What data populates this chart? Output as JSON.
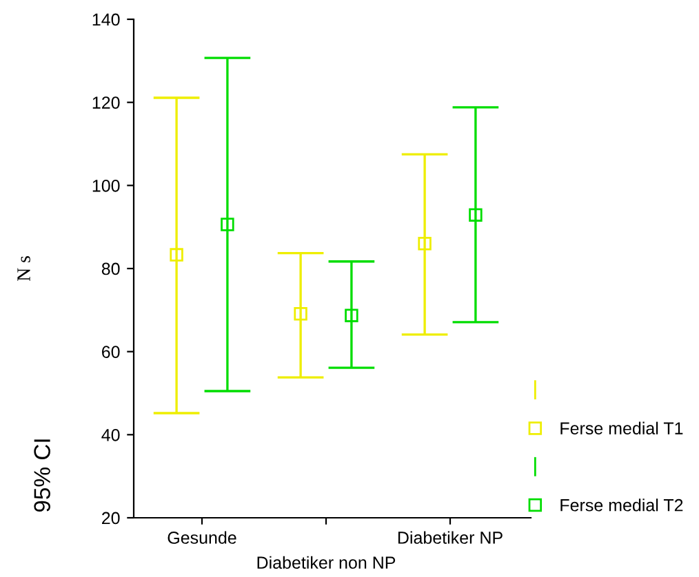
{
  "chart_data": {
    "type": "scatter",
    "ylabel": "N s",
    "annotations": [
      "95% CI"
    ],
    "categories": [
      "Gesunde",
      "Diabetiker non NP",
      "Diabetiker NP"
    ],
    "series": [
      {
        "name": "Ferse medial T1",
        "color": "#eeee00",
        "values": [
          83.3,
          69.1,
          86.0
        ],
        "errors": [
          [
            45.2,
            121.1
          ],
          [
            53.8,
            83.7
          ],
          [
            64.1,
            107.5
          ]
        ]
      },
      {
        "name": "Ferse medial T2",
        "color": "#00dd00",
        "values": [
          90.6,
          68.7,
          92.9
        ],
        "errors": [
          [
            50.5,
            130.7
          ],
          [
            56.1,
            81.7
          ],
          [
            67.1,
            118.8
          ]
        ]
      }
    ],
    "ylim": [
      20,
      140
    ],
    "yticks": [
      20,
      40,
      60,
      80,
      100,
      120,
      140
    ],
    "marker": "square",
    "grid": false,
    "legend": "bottom right"
  }
}
